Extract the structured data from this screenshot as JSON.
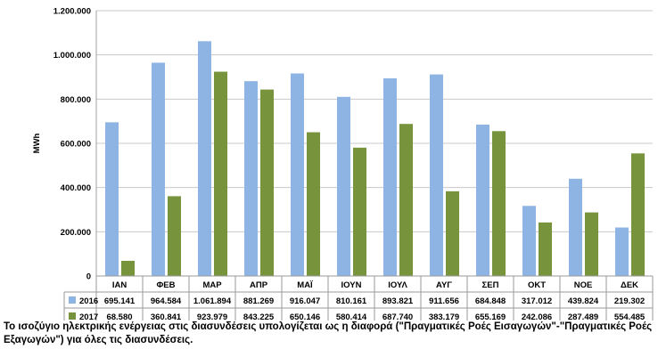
{
  "chart_data": {
    "type": "bar",
    "ylabel": "MWh",
    "ylim": [
      0,
      1200000
    ],
    "yticks": [
      0,
      200000,
      400000,
      600000,
      800000,
      1000000,
      1200000
    ],
    "ytick_labels": [
      "0",
      "200.000",
      "400.000",
      "600.000",
      "800.000",
      "1.000.000",
      "1.200.000"
    ],
    "grid": true,
    "categories": [
      "ΙΑΝ",
      "ΦΕΒ",
      "ΜΑΡ",
      "ΑΠΡ",
      "ΜΑΪ",
      "ΙΟΥΝ",
      "ΙΟΥΛ",
      "ΑΥΓ",
      "ΣΕΠ",
      "ΟΚΤ",
      "ΝΟΕ",
      "ΔΕΚ"
    ],
    "series": [
      {
        "name": "2016",
        "color": "#8eb4e3",
        "values": [
          695141,
          964584,
          1061894,
          881269,
          916047,
          810161,
          893821,
          911656,
          684848,
          317012,
          439824,
          219302
        ],
        "cells": [
          "695.141",
          "964.584",
          "1.061.894",
          "881.269",
          "916.047",
          "810.161",
          "893.821",
          "911.656",
          "684.848",
          "317.012",
          "439.824",
          "219.302"
        ]
      },
      {
        "name": "2017",
        "color": "#77933c",
        "values": [
          68580,
          360841,
          923979,
          843225,
          650146,
          580414,
          687740,
          383179,
          655169,
          242086,
          287489,
          554485
        ],
        "cells": [
          "68.580",
          "360.841",
          "923.979",
          "843.225",
          "650.146",
          "580.414",
          "687.740",
          "383.179",
          "655.169",
          "242.086",
          "287.489",
          "554.485"
        ]
      }
    ]
  },
  "caption": "Το ισοζύγιο ηλεκτρικής ενέργειας στις διασυνδέσεις υπολογίζεται ως η διαφορά (\"Πραγματικές Ροές Εισαγωγών\"-\"Πραγματικές Ροές Εξαγωγών\") για όλες τις διασυνδέσεις."
}
